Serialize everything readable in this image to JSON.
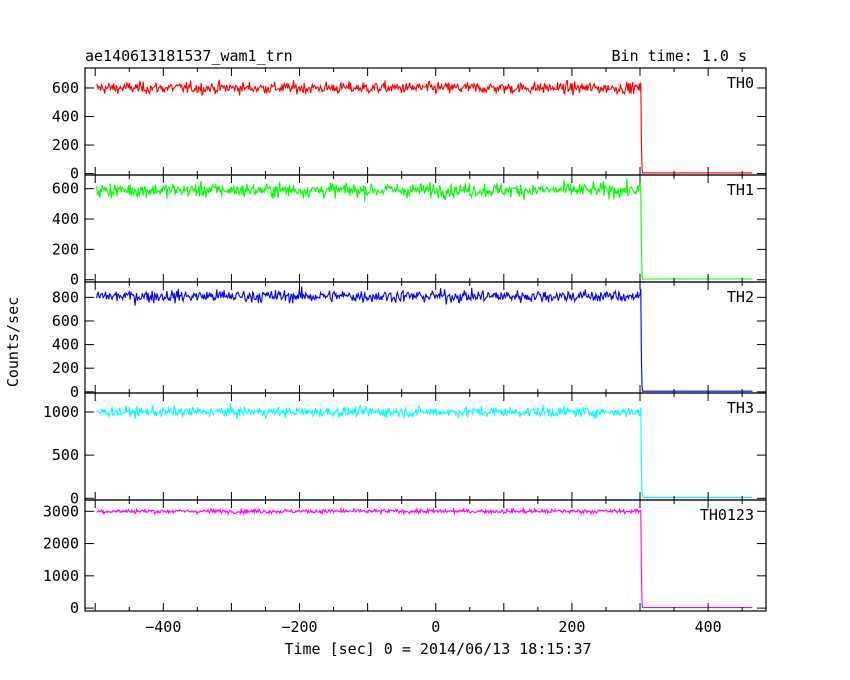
{
  "chart_data": {
    "type": "line",
    "title": "ae140613181537_wam1_trn",
    "subtitle": "Bin time: 1.0 s",
    "xlabel": "Time [sec] 0 = 2014/06/13 18:15:37",
    "ylabel": "Counts/sec",
    "xlim": [
      -515,
      485
    ],
    "x_ticks": [
      -400,
      -200,
      0,
      200,
      400
    ],
    "x_start": -498,
    "x_end": 465,
    "drop_at": 302,
    "panels": [
      {
        "name": "TH0",
        "color": "#ff0000",
        "level": 600,
        "noise": 35,
        "after": 5,
        "ylim": [
          -10,
          740
        ],
        "ticks": [
          0,
          200,
          400,
          600
        ]
      },
      {
        "name": "TH1",
        "color": "#00ff00",
        "level": 590,
        "noise": 40,
        "after": 5,
        "ylim": [
          -15,
          690
        ],
        "ticks": [
          0,
          200,
          400,
          600
        ]
      },
      {
        "name": "TH2",
        "color": "#0000ff",
        "level": 810,
        "noise": 45,
        "after": 5,
        "ylim": [
          -10,
          930
        ],
        "ticks": [
          0,
          200,
          400,
          600,
          800
        ]
      },
      {
        "name": "TH3",
        "color": "#00ffff",
        "level": 1000,
        "noise": 50,
        "after": 10,
        "ylim": [
          -20,
          1220
        ],
        "ticks": [
          0,
          500,
          1000
        ]
      },
      {
        "name": "TH0123",
        "color": "#ff00ff",
        "level": 3000,
        "noise": 55,
        "after": 15,
        "ylim": [
          -90,
          3350
        ],
        "ticks": [
          0,
          1000,
          2000,
          3000
        ]
      }
    ]
  }
}
